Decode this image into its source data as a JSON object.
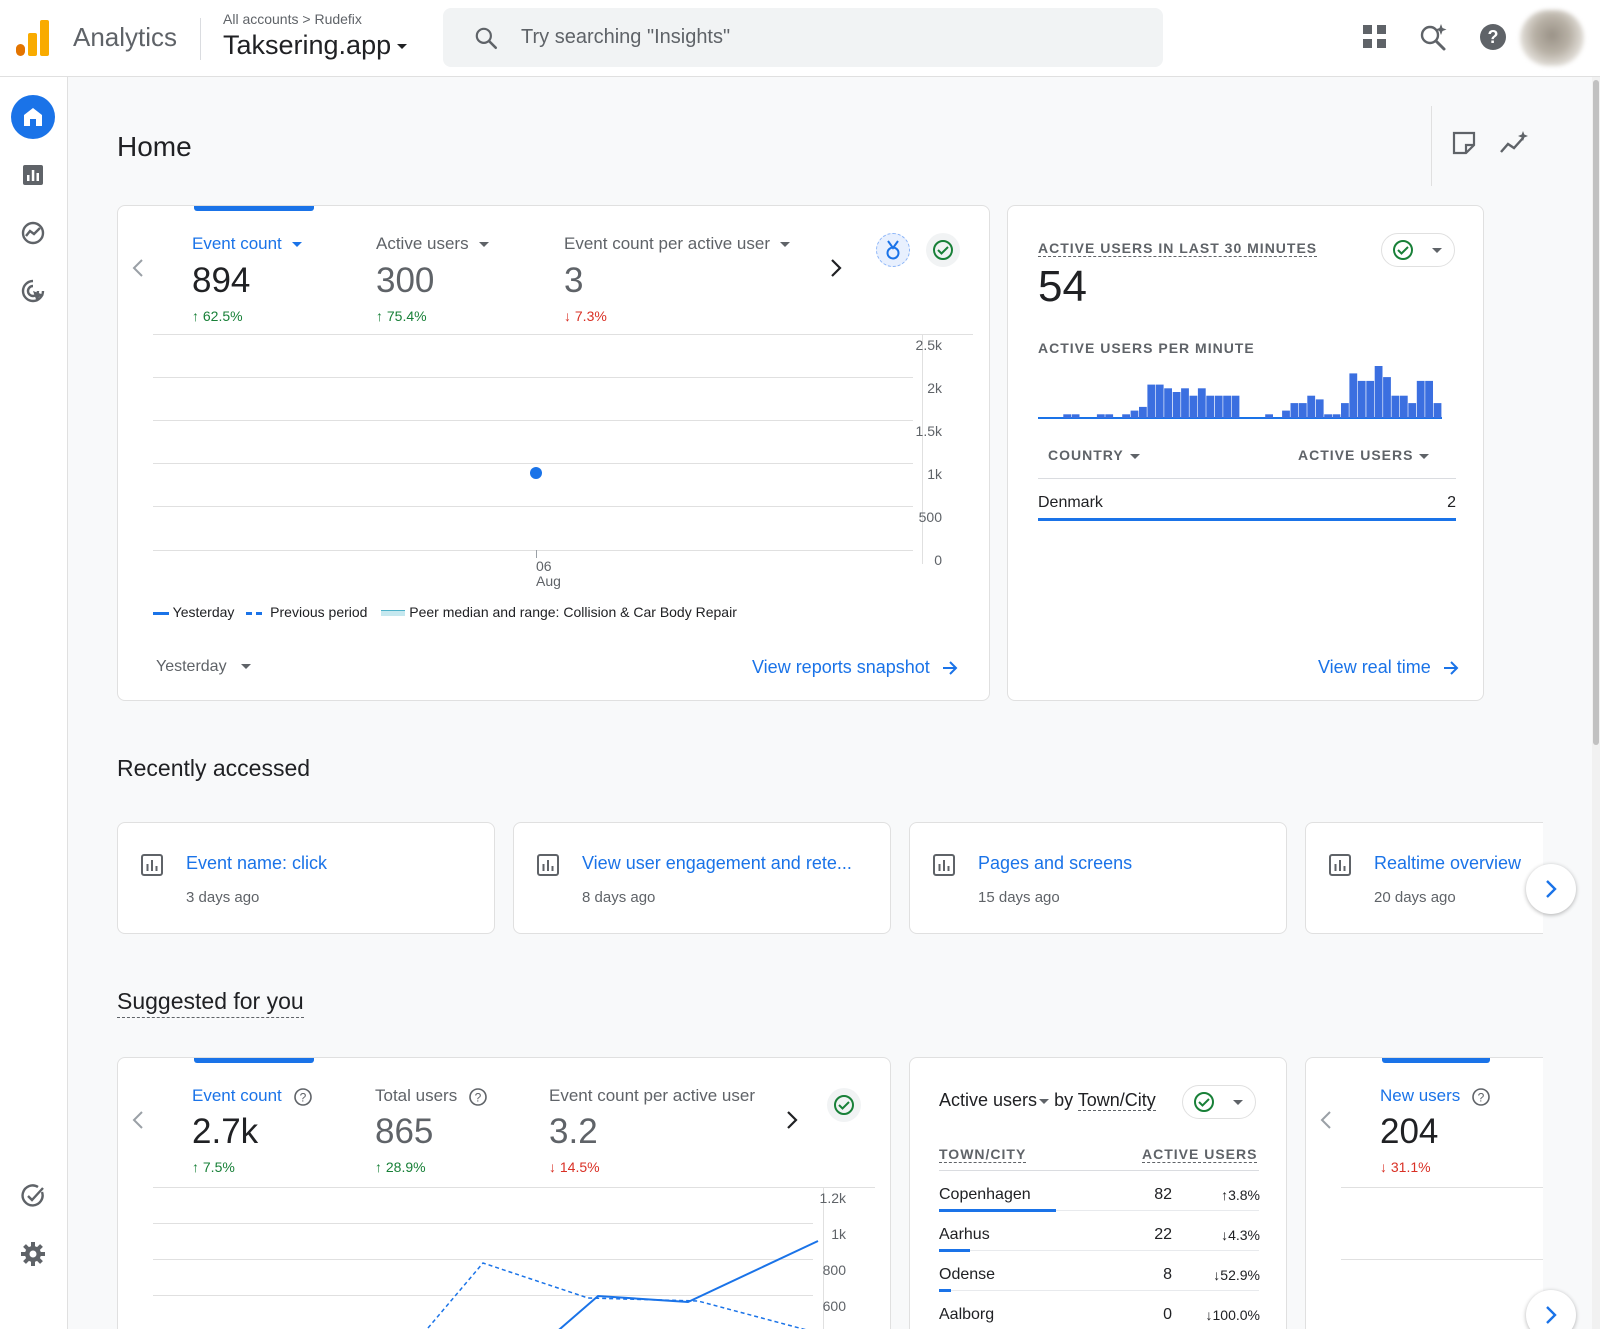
{
  "header": {
    "app_name": "Analytics",
    "breadcrumb_account": "All accounts",
    "breadcrumb_property": "Rudefix",
    "property_title": "Taksering.app",
    "search_placeholder": "Try searching \"Insights\""
  },
  "page": {
    "title": "Home"
  },
  "overview_card": {
    "tabs": [
      {
        "label": "Event count",
        "value": "894",
        "delta": "62.5%",
        "direction": "up"
      },
      {
        "label": "Active users",
        "value": "300",
        "delta": "75.4%",
        "direction": "up"
      },
      {
        "label": "Event count per active user",
        "value": "3",
        "delta": "7.3%",
        "direction": "down"
      }
    ],
    "legend": {
      "yesterday": "Yesterday",
      "previous": "Previous period",
      "peer": "Peer median and range: Collision & Car Body Repair"
    },
    "date_range": "Yesterday",
    "link": "View reports snapshot"
  },
  "chart_data": [
    {
      "type": "line",
      "yticks": [
        "2.5k",
        "2k",
        "1.5k",
        "1k",
        "500",
        "0"
      ],
      "xticks": [
        "06",
        "Aug"
      ],
      "ylim": [
        0,
        2500
      ],
      "series": [
        {
          "name": "Yesterday",
          "x": [
            "06 Aug"
          ],
          "values": [
            894
          ]
        }
      ]
    },
    {
      "type": "bar",
      "title": "ACTIVE USERS PER MINUTE",
      "values": [
        0,
        0,
        0,
        1,
        1,
        0,
        0,
        1,
        1,
        0,
        1,
        2,
        3,
        9,
        9,
        8,
        7,
        8,
        6,
        8,
        6,
        6,
        6,
        6,
        0,
        0,
        0,
        1,
        0,
        2,
        4,
        4,
        6,
        5,
        1,
        1,
        4,
        12,
        10,
        10,
        14,
        11,
        6,
        6,
        4,
        10,
        10,
        4
      ],
      "ylim": [
        0,
        14
      ]
    },
    {
      "type": "line",
      "yticks": [
        "1.2k",
        "1k",
        "800",
        "600"
      ],
      "ylim": [
        600,
        1200
      ]
    }
  ],
  "realtime_card": {
    "title": "ACTIVE USERS IN LAST 30 MINUTES",
    "value": "54",
    "subtitle": "ACTIVE USERS PER MINUTE",
    "col_country": "COUNTRY",
    "col_users": "ACTIVE USERS",
    "rows": [
      {
        "country": "Denmark",
        "users": "2"
      }
    ],
    "link": "View real time"
  },
  "recently_accessed": {
    "title": "Recently accessed",
    "items": [
      {
        "title": "Event name: click",
        "sub": "3 days ago"
      },
      {
        "title": "View user engagement and rete...",
        "sub": "8 days ago"
      },
      {
        "title": "Pages and screens",
        "sub": "15 days ago"
      },
      {
        "title": "Realtime overview",
        "sub": "20 days ago"
      }
    ]
  },
  "suggested": {
    "title": "Suggested for you",
    "card1": {
      "tabs": [
        {
          "label": "Event count",
          "value": "2.7k",
          "delta": "7.5%",
          "direction": "up"
        },
        {
          "label": "Total users",
          "value": "865",
          "delta": "28.9%",
          "direction": "up"
        },
        {
          "label": "Event count per active user",
          "value": "3.2",
          "delta": "14.5%",
          "direction": "down"
        }
      ]
    },
    "card2": {
      "metric": "Active users",
      "by": "by",
      "dimension": "Town/City",
      "col1": "TOWN/CITY",
      "col2": "ACTIVE USERS",
      "rows": [
        {
          "city": "Copenhagen",
          "users": "82",
          "delta": "3.8%",
          "direction": "up",
          "share": 0.95
        },
        {
          "city": "Aarhus",
          "users": "22",
          "delta": "4.3%",
          "direction": "down",
          "share": 0.25
        },
        {
          "city": "Odense",
          "users": "8",
          "delta": "52.9%",
          "direction": "down",
          "share": 0.1
        },
        {
          "city": "Aalborg",
          "users": "0",
          "delta": "100.0%",
          "direction": "down",
          "share": 0
        }
      ]
    },
    "card3": {
      "label": "New users",
      "value": "204",
      "delta": "31.1%",
      "direction": "down"
    }
  }
}
